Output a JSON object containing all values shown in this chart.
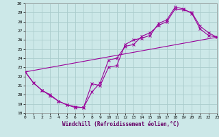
{
  "xlabel": "Windchill (Refroidissement éolien,°C)",
  "bg_color": "#cce8e8",
  "grid_color": "#aacccc",
  "line_color": "#990099",
  "xlim": [
    0,
    23
  ],
  "ylim": [
    18,
    30
  ],
  "xticks": [
    0,
    1,
    2,
    3,
    4,
    5,
    6,
    7,
    8,
    9,
    10,
    11,
    12,
    13,
    14,
    15,
    16,
    17,
    18,
    19,
    20,
    21,
    22,
    23
  ],
  "yticks": [
    18,
    19,
    20,
    21,
    22,
    23,
    24,
    25,
    26,
    27,
    28,
    29,
    30
  ],
  "line1_x": [
    0,
    1,
    2,
    3,
    4,
    5,
    6,
    7,
    8,
    9,
    10,
    11,
    12,
    13,
    14,
    15,
    16,
    17,
    18,
    19,
    20,
    21,
    22,
    23
  ],
  "line1_y": [
    22.5,
    21.3,
    20.5,
    19.9,
    19.3,
    18.9,
    18.6,
    18.6,
    21.2,
    21.0,
    23.0,
    23.2,
    25.5,
    26.0,
    26.2,
    26.5,
    27.8,
    28.2,
    29.6,
    29.4,
    28.9,
    27.2,
    26.5,
    26.3
  ],
  "line2_x": [
    0,
    1,
    2,
    3,
    4,
    5,
    6,
    7,
    8,
    9,
    10,
    11,
    12,
    13,
    14,
    15,
    16,
    17,
    18,
    19,
    20,
    21,
    22,
    23
  ],
  "line2_y": [
    22.5,
    21.3,
    20.5,
    20.0,
    19.3,
    18.9,
    18.7,
    18.6,
    20.3,
    21.3,
    23.8,
    24.0,
    25.3,
    25.5,
    26.4,
    26.8,
    27.6,
    28.0,
    29.4,
    29.3,
    29.0,
    27.5,
    26.8,
    26.3
  ],
  "line3_x": [
    0,
    23
  ],
  "line3_y": [
    22.5,
    26.3
  ]
}
